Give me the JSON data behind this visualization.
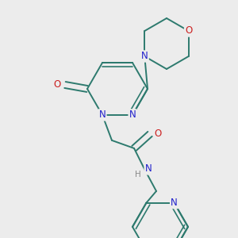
{
  "bg_color": "#ececec",
  "bond_color": "#2d7a6e",
  "N_color": "#2020cc",
  "O_color": "#cc2020",
  "H_color": "#888888",
  "line_width": 1.4,
  "font_size": 8.5,
  "figsize": [
    3.0,
    3.0
  ],
  "dpi": 100,
  "xlim": [
    0,
    300
  ],
  "ylim": [
    0,
    300
  ]
}
